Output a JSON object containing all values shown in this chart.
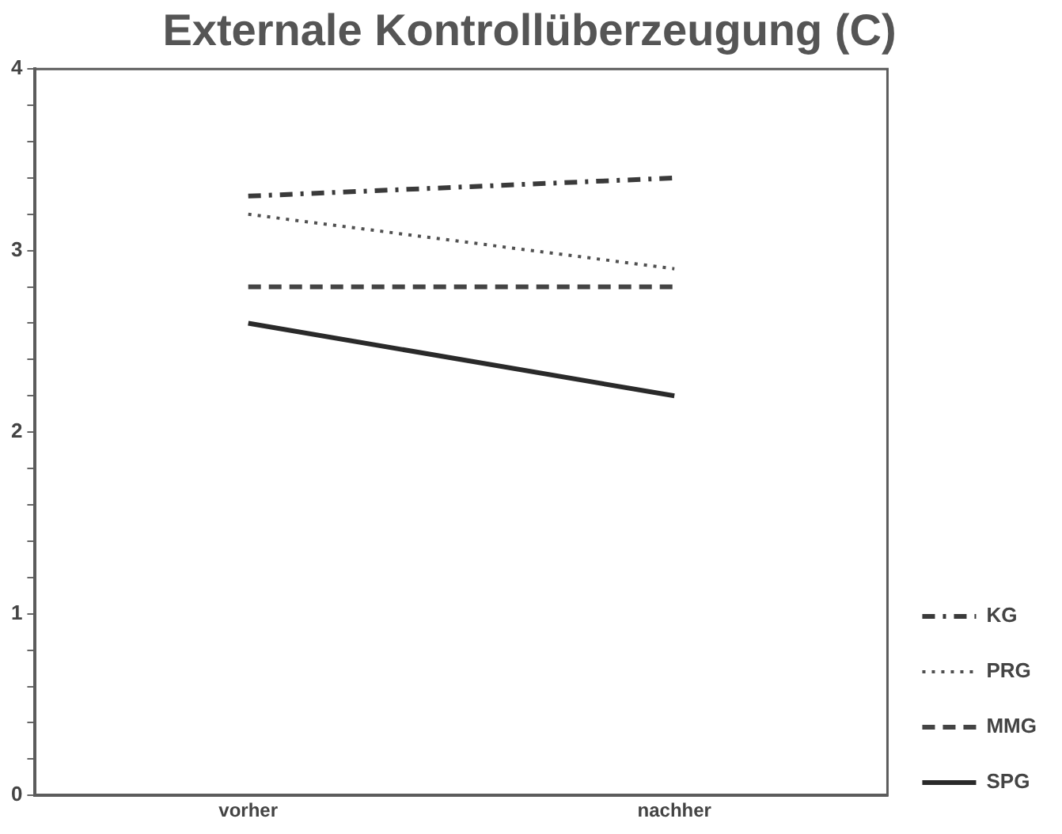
{
  "chart_data": {
    "type": "line",
    "title": "Externale Kontrollüberzeugung (C)",
    "categories": [
      "vorher",
      "nachher"
    ],
    "series": [
      {
        "name": "KG",
        "color": "#3a3a3a",
        "line_style": "dashdot",
        "values": [
          3.3,
          3.4
        ]
      },
      {
        "name": "PRG",
        "color": "#505050",
        "line_style": "dotted",
        "values": [
          3.2,
          2.9
        ]
      },
      {
        "name": "MMG",
        "color": "#444444",
        "line_style": "dashed",
        "values": [
          2.8,
          2.8
        ]
      },
      {
        "name": "SPG",
        "color": "#2a2a2a",
        "line_style": "solid",
        "values": [
          2.6,
          2.2
        ]
      }
    ],
    "ylim": [
      0,
      4
    ],
    "yticks": [
      0,
      {
        "value": 0.2,
        "label": null
      },
      {
        "value": 0.4,
        "label": null
      },
      {
        "value": 0.6,
        "label": null
      },
      {
        "value": 0.8,
        "label": null
      },
      1,
      {
        "value": 1.2,
        "label": null
      },
      {
        "value": 1.4,
        "label": null
      },
      {
        "value": 1.6,
        "label": null
      },
      {
        "value": 1.8,
        "label": null
      },
      2,
      {
        "value": 2.2,
        "label": null
      },
      {
        "value": 2.4,
        "label": null
      },
      {
        "value": 2.6,
        "label": null
      },
      {
        "value": 2.8,
        "label": null
      },
      3,
      {
        "value": 3.2,
        "label": null
      },
      {
        "value": 3.4,
        "label": null
      },
      {
        "value": 3.6,
        "label": null
      },
      {
        "value": 3.8,
        "label": null
      },
      4
    ],
    "grid": false,
    "legend": "bottom right",
    "marker": "none"
  }
}
